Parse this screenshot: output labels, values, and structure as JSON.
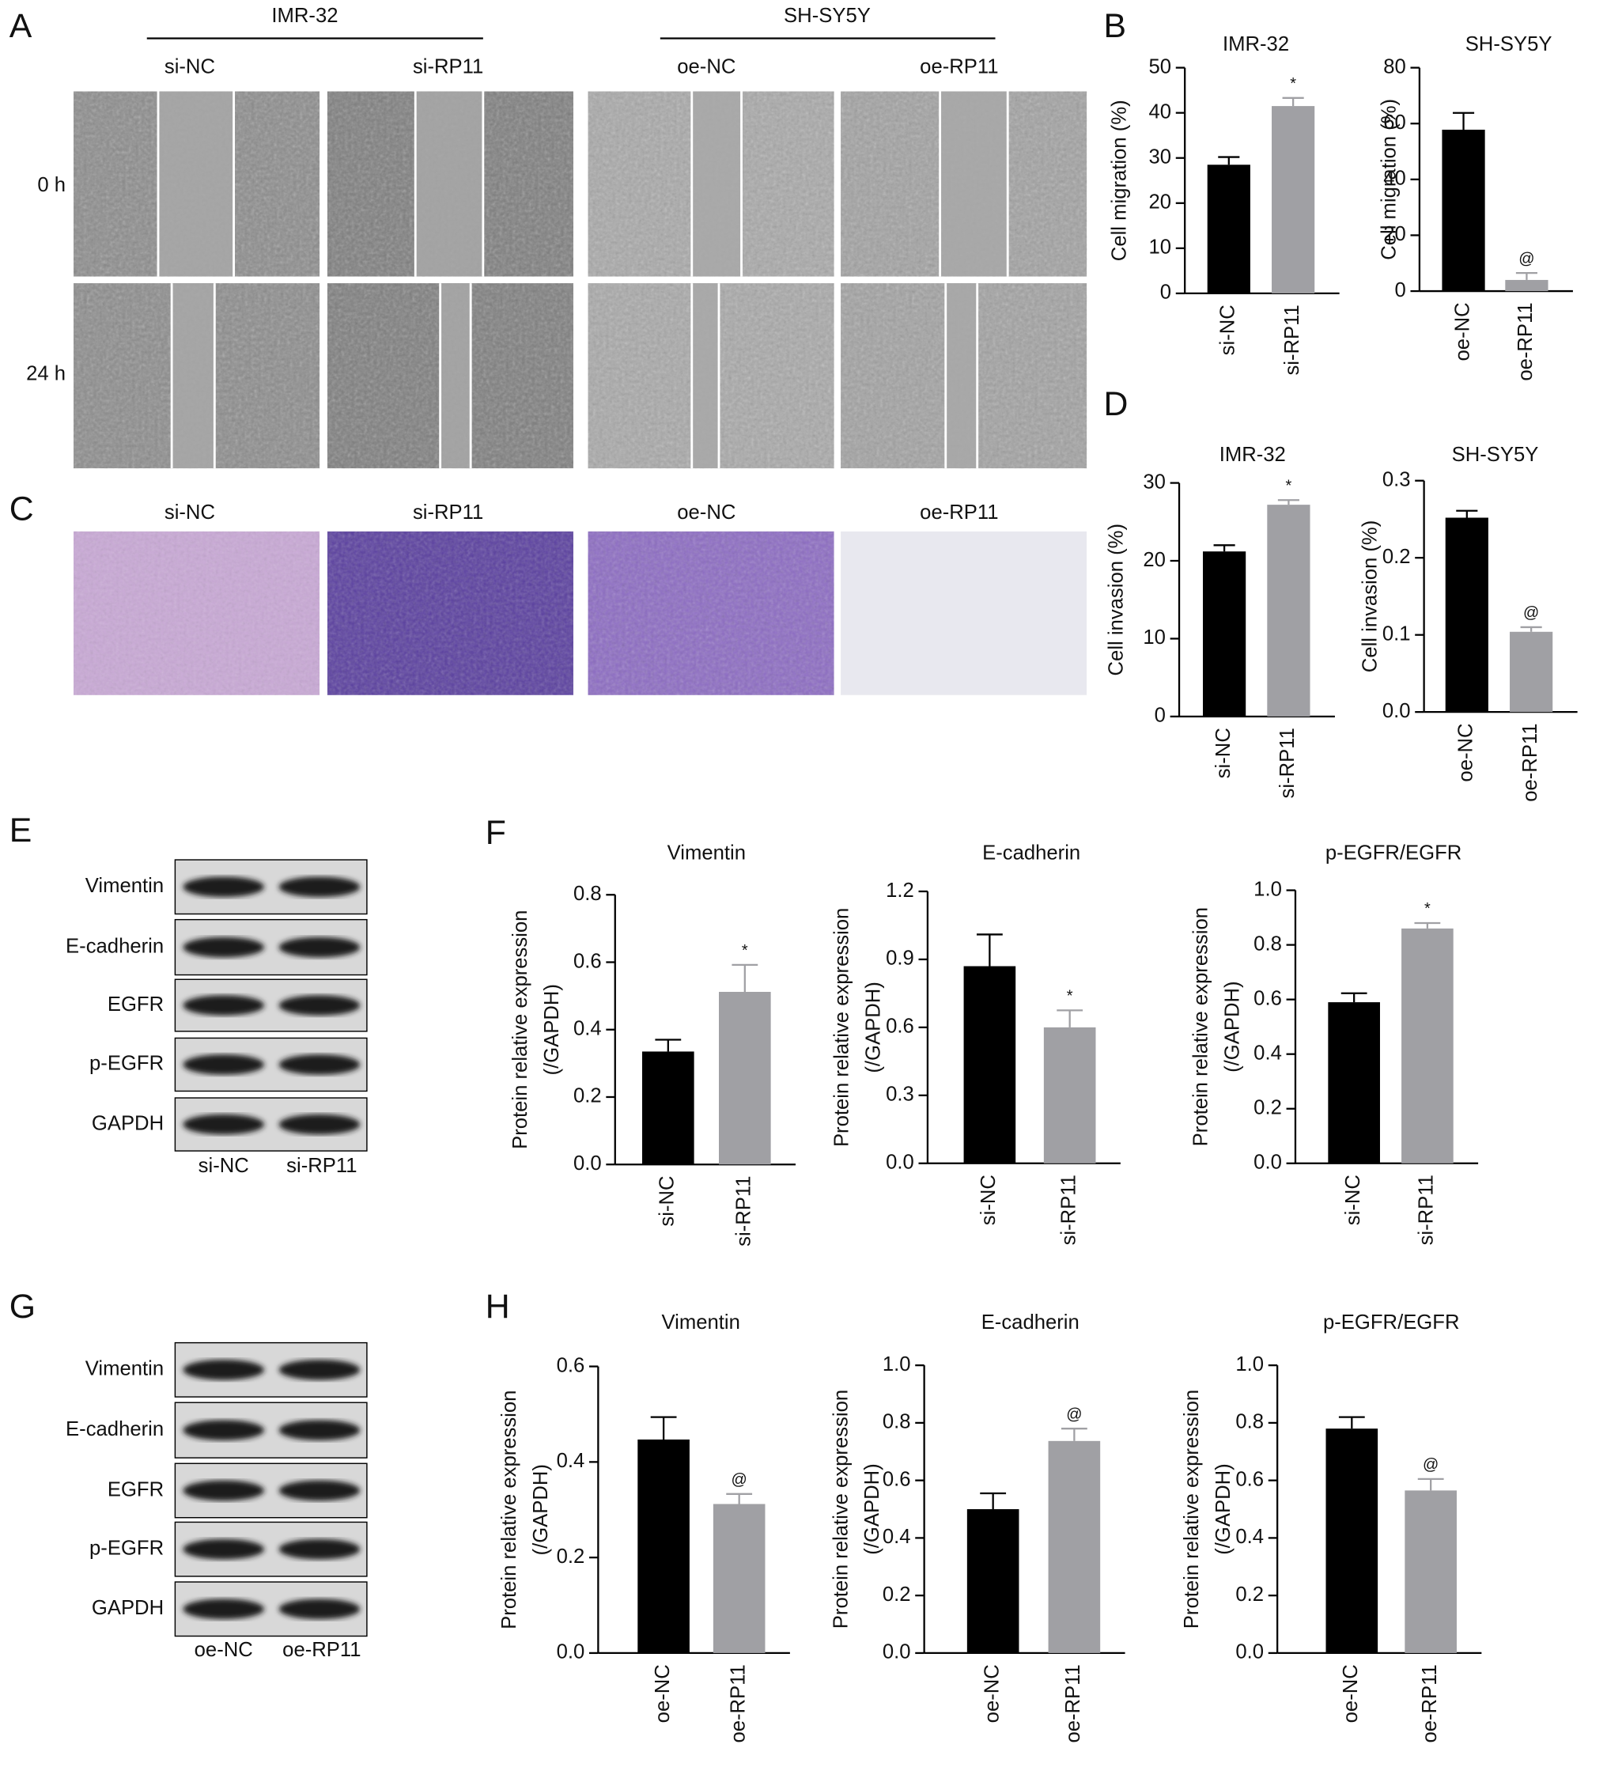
{
  "panel_labels": [
    "A",
    "B",
    "C",
    "D",
    "E",
    "F",
    "G",
    "H"
  ],
  "wound_healing": {
    "cell_lines": [
      "IMR-32",
      "SH-SY5Y"
    ],
    "groups": [
      "si-NC",
      "si-RP11",
      "oe-NC",
      "oe-RP11"
    ],
    "times": [
      "0 h",
      "24 h"
    ]
  },
  "transwell": {
    "groups": [
      "si-NC",
      "si-RP11",
      "oe-NC",
      "oe-RP11"
    ]
  },
  "blot_e": {
    "proteins": [
      "Vimentin",
      "E-cadherin",
      "EGFR",
      "p-EGFR",
      "GAPDH"
    ],
    "lanes": [
      "si-NC",
      "si-RP11"
    ]
  },
  "blot_g": {
    "proteins": [
      "Vimentin",
      "E-cadherin",
      "EGFR",
      "p-EGFR",
      "GAPDH"
    ],
    "lanes": [
      "oe-NC",
      "oe-RP11"
    ]
  },
  "chart_data": [
    {
      "type": "bar",
      "title": "IMR-32",
      "ylabel": [
        "Cell migration (%)"
      ],
      "categories": [
        "si-NC",
        "si-RP11"
      ],
      "values": [
        28.5,
        41.5
      ],
      "errors": [
        1.7,
        1.8
      ],
      "colors": [
        "#000000",
        "#a0a0a4"
      ],
      "annotations": [
        null,
        "*"
      ],
      "ylim": [
        0,
        50
      ],
      "yticks": [
        0,
        10,
        20,
        30,
        40,
        50
      ]
    },
    {
      "type": "bar",
      "title": "SH-SY5Y",
      "ylabel": [
        "Cell migration (%)"
      ],
      "categories": [
        "oe-NC",
        "oe-RP11"
      ],
      "values": [
        57.8,
        4
      ],
      "errors": [
        6,
        2.5
      ],
      "colors": [
        "#000000",
        "#a0a0a4"
      ],
      "annotations": [
        null,
        "@"
      ],
      "ylim": [
        0,
        80
      ],
      "yticks": [
        0,
        20,
        40,
        60,
        80
      ]
    },
    {
      "type": "bar",
      "title": "IMR-32",
      "ylabel": [
        "Cell invasion (%)"
      ],
      "categories": [
        "si-NC",
        "si-RP11"
      ],
      "values": [
        21.2,
        27.2
      ],
      "errors": [
        0.8,
        0.6
      ],
      "colors": [
        "#000000",
        "#a0a0a4"
      ],
      "annotations": [
        null,
        "*"
      ],
      "ylim": [
        0,
        30
      ],
      "yticks": [
        0,
        10,
        20,
        30
      ]
    },
    {
      "type": "bar",
      "title": "SH-SY5Y",
      "ylabel": [
        "Cell invasion (%)"
      ],
      "categories": [
        "oe-NC",
        "oe-RP11"
      ],
      "values": [
        0.252,
        0.104
      ],
      "errors": [
        0.009,
        0.006
      ],
      "colors": [
        "#000000",
        "#a0a0a4"
      ],
      "annotations": [
        null,
        "@"
      ],
      "ylim": [
        0,
        0.3
      ],
      "yticks": [
        {
          "value": 0,
          "label": "0.0"
        },
        0.1,
        0.2,
        0.3
      ]
    },
    {
      "type": "bar",
      "title": "Vimentin",
      "ylabel": [
        "Protein relative expression",
        "(/GAPDH)"
      ],
      "categories": [
        "si-NC",
        "si-RP11"
      ],
      "values": [
        0.335,
        0.512
      ],
      "errors": [
        0.035,
        0.08
      ],
      "colors": [
        "#000000",
        "#a0a0a4"
      ],
      "annotations": [
        null,
        "*"
      ],
      "ylim": [
        0,
        0.8
      ],
      "yticks": [
        {
          "value": 0,
          "label": "0.0"
        },
        0.2,
        0.4,
        0.6,
        0.8
      ]
    },
    {
      "type": "bar",
      "title": "E-cadherin",
      "ylabel": [
        "Protein relative expression",
        "(/GAPDH)"
      ],
      "categories": [
        "si-NC",
        "si-RP11"
      ],
      "values": [
        0.87,
        0.6
      ],
      "errors": [
        0.14,
        0.075
      ],
      "colors": [
        "#000000",
        "#a0a0a4"
      ],
      "annotations": [
        null,
        "*"
      ],
      "ylim": [
        0,
        1.2
      ],
      "yticks": [
        {
          "value": 0,
          "label": "0.0"
        },
        0.3,
        0.6,
        0.9,
        1.2
      ]
    },
    {
      "type": "bar",
      "title": "p-EGFR/EGFR",
      "ylabel": [
        "Protein relative expression",
        "(/GAPDH)"
      ],
      "categories": [
        "si-NC",
        "si-RP11"
      ],
      "values": [
        0.59,
        0.86
      ],
      "errors": [
        0.033,
        0.02
      ],
      "colors": [
        "#000000",
        "#a0a0a4"
      ],
      "annotations": [
        null,
        "*"
      ],
      "ylim": [
        0,
        1.0
      ],
      "yticks": [
        {
          "value": 0,
          "label": "0.0"
        },
        0.2,
        0.4,
        0.6,
        0.8,
        {
          "value": 1,
          "label": "1.0"
        }
      ]
    },
    {
      "type": "bar",
      "title": "Vimentin",
      "ylabel": [
        "Protein relative expression",
        "(/GAPDH)"
      ],
      "categories": [
        "oe-NC",
        "oe-RP11"
      ],
      "values": [
        0.447,
        0.312
      ],
      "errors": [
        0.047,
        0.021
      ],
      "colors": [
        "#000000",
        "#a0a0a4"
      ],
      "annotations": [
        null,
        "@"
      ],
      "ylim": [
        0,
        0.6
      ],
      "yticks": [
        {
          "value": 0,
          "label": "0.0"
        },
        0.2,
        0.4,
        0.6
      ]
    },
    {
      "type": "bar",
      "title": "E-cadherin",
      "ylabel": [
        "Protein relative expression",
        "(/GAPDH)"
      ],
      "categories": [
        "oe-NC",
        "oe-RP11"
      ],
      "values": [
        0.5,
        0.737
      ],
      "errors": [
        0.055,
        0.043
      ],
      "colors": [
        "#000000",
        "#a0a0a4"
      ],
      "annotations": [
        null,
        "@"
      ],
      "ylim": [
        0,
        1.0
      ],
      "yticks": [
        {
          "value": 0,
          "label": "0.0"
        },
        0.2,
        0.4,
        0.6,
        0.8,
        {
          "value": 1,
          "label": "1.0"
        }
      ]
    },
    {
      "type": "bar",
      "title": "p-EGFR/EGFR",
      "ylabel": [
        "Protein relative expression",
        "(/GAPDH)"
      ],
      "categories": [
        "oe-NC",
        "oe-RP11"
      ],
      "values": [
        0.78,
        0.565
      ],
      "errors": [
        0.04,
        0.04
      ],
      "colors": [
        "#000000",
        "#a0a0a4"
      ],
      "annotations": [
        null,
        "@"
      ],
      "ylim": [
        0,
        1.0
      ],
      "yticks": [
        {
          "value": 0,
          "label": "0.0"
        },
        0.2,
        0.4,
        0.6,
        0.8,
        {
          "value": 1,
          "label": "1.0"
        }
      ]
    }
  ]
}
